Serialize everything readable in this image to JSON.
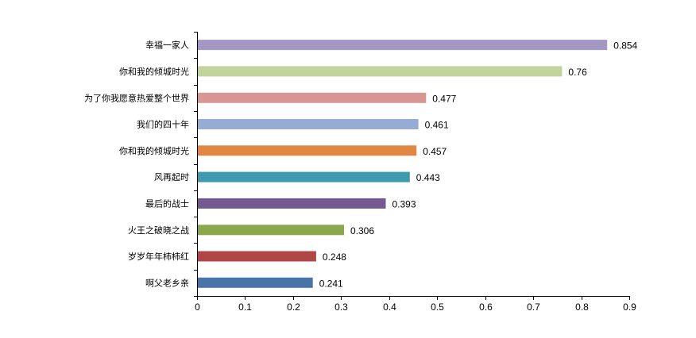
{
  "chart_data": {
    "type": "bar",
    "orientation": "horizontal",
    "title": "",
    "xlabel": "",
    "ylabel": "",
    "xlim": [
      0,
      0.9
    ],
    "x_ticks": [
      "0",
      "0.1",
      "0.2",
      "0.3",
      "0.4",
      "0.5",
      "0.6",
      "0.7",
      "0.8",
      "0.9"
    ],
    "x_tick_values": [
      0,
      0.1,
      0.2,
      0.3,
      0.4,
      0.5,
      0.6,
      0.7,
      0.8,
      0.9
    ],
    "grid": false,
    "legend": "none",
    "categories": [
      "幸福一家人",
      "你和我的倾城时光",
      "为了你我愿意热爱整个世界",
      "我们的四十年",
      "你和我的倾城时光",
      "风再起时",
      "最后的战士",
      "火王之破晓之战",
      "岁岁年年柿柿红",
      "啊父老乡亲"
    ],
    "values": [
      0.854,
      0.76,
      0.477,
      0.461,
      0.457,
      0.443,
      0.393,
      0.306,
      0.248,
      0.241
    ],
    "value_labels": [
      "0.854",
      "0.76",
      "0.477",
      "0.461",
      "0.457",
      "0.443",
      "0.393",
      "0.306",
      "0.248",
      "0.241"
    ],
    "colors": [
      "#a497c1",
      "#c0d49b",
      "#d79693",
      "#97acd5",
      "#df8743",
      "#3e9aae",
      "#73598f",
      "#8aa84b",
      "#b04746",
      "#4874a9"
    ]
  }
}
